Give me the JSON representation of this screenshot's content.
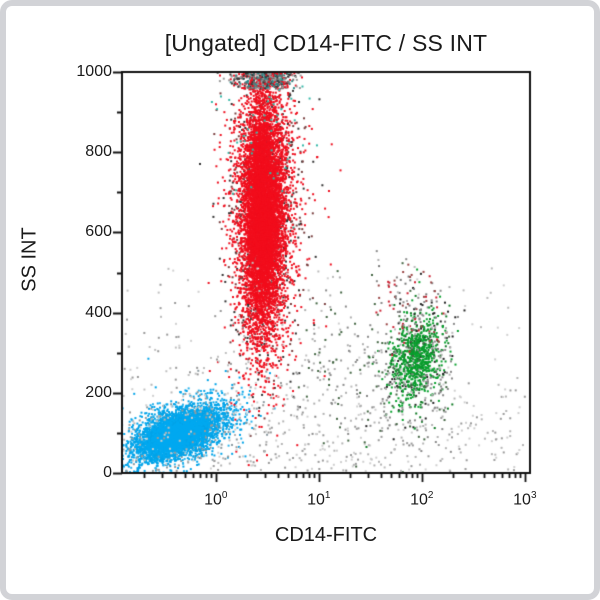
{
  "chart_data": {
    "type": "scatter",
    "title": "[Ungated] CD14-FITC  /  SS INT",
    "xlabel": "CD14-FITC",
    "ylabel": "SS INT",
    "x_scale": "log",
    "x_range_log": [
      -0.91,
      3.05
    ],
    "y_range": [
      0,
      1000
    ],
    "x_ticks": [
      {
        "base": "10",
        "exp": "0",
        "log": 0
      },
      {
        "base": "10",
        "exp": "1",
        "log": 1
      },
      {
        "base": "10",
        "exp": "2",
        "log": 2
      },
      {
        "base": "10",
        "exp": "3",
        "log": 3
      }
    ],
    "y_ticks": [
      0,
      200,
      400,
      600,
      800,
      1000
    ],
    "y_minor_step": 100,
    "grid": false,
    "legend": "none",
    "colors": {
      "blue_population": "#00a3e8",
      "red_population": "#ee0f1e",
      "green_population": "#0aa12f",
      "debris_gray": "#a8a8a8",
      "axis": "#111111",
      "frame_border": "#d2d3d7"
    },
    "populations": [
      {
        "name": "blue-halo",
        "n": 900,
        "x_log_mean": -0.33,
        "x_log_sd": 0.3,
        "y_mean": 100,
        "y_sd": 52,
        "corr": 0.5,
        "colors": [
          "#2ab3ec",
          "#00a3e8",
          "#00a3e8",
          "#8c9aa0"
        ]
      },
      {
        "name": "blue-core",
        "n": 3200,
        "x_log_mean": -0.36,
        "x_log_sd": 0.21,
        "y_mean": 98,
        "y_sd": 33,
        "corr": 0.5,
        "colors": [
          "#00a3e8"
        ]
      },
      {
        "name": "blue-inner",
        "n": 1600,
        "x_log_mean": -0.38,
        "x_log_sd": 0.15,
        "y_mean": 95,
        "y_sd": 24,
        "corr": 0.5,
        "colors": [
          "#00a9f0"
        ]
      },
      {
        "name": "red-halo",
        "n": 1600,
        "x_log_mean": 0.47,
        "x_log_sd": 0.2,
        "y_mean": 640,
        "y_sd": 210,
        "corr": 0,
        "colors": [
          "#ee1020",
          "#ee1020",
          "#ee1020",
          "#333333",
          "#7a4040"
        ]
      },
      {
        "name": "red-core",
        "n": 5200,
        "x_log_mean": 0.46,
        "x_log_sd": 0.115,
        "y_mean": 650,
        "y_sd": 160,
        "corr": 0,
        "colors": [
          "#ee0f1e"
        ]
      },
      {
        "name": "red-inner",
        "n": 2600,
        "x_log_mean": 0.45,
        "x_log_sd": 0.075,
        "y_mean": 640,
        "y_sd": 120,
        "corr": 0,
        "colors": [
          "#f20d1c"
        ]
      },
      {
        "name": "red-top-cap",
        "n": 420,
        "x_log_mean": 0.47,
        "x_log_sd": 0.16,
        "y_uniform": [
          958,
          1000
        ],
        "corr": 0,
        "colors": [
          "#3a3a3a",
          "#6f6f6f",
          "#9a9a9a",
          "#ee1020",
          "#2e8b8b"
        ]
      },
      {
        "name": "teal-specks",
        "n": 50,
        "x_log_mean": 0.45,
        "x_log_sd": 0.22,
        "y_mean": 870,
        "y_sd": 90,
        "corr": 0,
        "colors": [
          "#35b8a8"
        ]
      },
      {
        "name": "green-halo",
        "n": 420,
        "x_log_mean": 1.95,
        "x_log_sd": 0.17,
        "y_mean": 280,
        "y_sd": 80,
        "corr": 0.2,
        "colors": [
          "#0aa12f",
          "#0f7a24",
          "#222222",
          "#888888"
        ]
      },
      {
        "name": "green-core",
        "n": 560,
        "x_log_mean": 1.95,
        "x_log_sd": 0.11,
        "y_mean": 285,
        "y_sd": 48,
        "corr": 0.2,
        "colors": [
          "#0aa12f",
          "#089a2b"
        ]
      },
      {
        "name": "pink-above-green",
        "n": 80,
        "x_log_mean": 1.9,
        "x_log_sd": 0.2,
        "y_mean": 420,
        "y_sd": 60,
        "corr": 0,
        "colors": [
          "#cc2233",
          "#994444",
          "#777777"
        ]
      },
      {
        "name": "debris-bottom-band",
        "n": 420,
        "x_log_uniform": [
          -0.9,
          3.0
        ],
        "y_mean": 90,
        "y_sd": 70,
        "corr": 0,
        "colors": [
          "#b4b4b4",
          "#9a9a9a",
          "#cfcfcf"
        ]
      },
      {
        "name": "debris-mid",
        "n": 300,
        "x_log_uniform": [
          0.8,
          2.3
        ],
        "y_mean": 260,
        "y_sd": 110,
        "corr": 0,
        "colors": [
          "#b0b0b0",
          "#8a8a8a",
          "#446644"
        ]
      },
      {
        "name": "debris-left-sparse",
        "n": 110,
        "x_log_uniform": [
          -0.9,
          0.9
        ],
        "y_mean": 230,
        "y_sd": 120,
        "corr": 0,
        "colors": [
          "#c0c0c0",
          "#999999"
        ]
      },
      {
        "name": "debris-sparse-all",
        "n": 90,
        "x_log_uniform": [
          -0.9,
          3.0
        ],
        "y_uniform": [
          5,
          520
        ],
        "corr": 0,
        "colors": [
          "#d0d0d0",
          "#bbbbbb"
        ]
      }
    ]
  }
}
